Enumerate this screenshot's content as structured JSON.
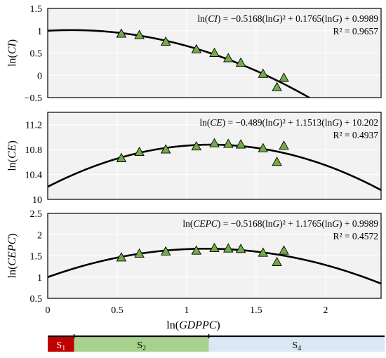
{
  "chart_data": [
    {
      "type": "scatter",
      "equation": {
        "pre": "ln(",
        "var": "CI",
        "mid": ") = −0.5168(ln",
        "g": "G",
        "post": ")² + 0.1765(ln",
        "g2": "G",
        "end": ") + 0.9989"
      },
      "r2": "R² = 0.9657",
      "ylabel": {
        "pre": "ln(",
        "var": "CI",
        "post": ")"
      },
      "xlim": [
        0,
        2.4
      ],
      "ylim": [
        -0.5,
        1.5
      ],
      "yticks": [
        "1.5",
        "1",
        "0.5",
        "0",
        "−0.5"
      ],
      "ytick_values": [
        1.5,
        1,
        0.5,
        0,
        -0.5
      ],
      "fit": {
        "a": -0.5168,
        "b": 0.1765,
        "c": 0.9989
      },
      "series": [
        {
          "x": [
            0.53,
            0.66,
            0.85,
            1.07,
            1.2,
            1.3,
            1.39,
            1.55,
            1.65,
            1.7
          ],
          "y": [
            0.93,
            0.9,
            0.75,
            0.58,
            0.5,
            0.38,
            0.28,
            0.03,
            -0.27,
            -0.06
          ]
        }
      ]
    },
    {
      "type": "scatter",
      "equation": {
        "pre": "ln(",
        "var": "CE",
        "mid": ") = −0.489(ln",
        "g": "G",
        "post": ")² + 1.1513(ln",
        "g2": "G",
        "end": ") + 10.202"
      },
      "r2": "R² = 0.4937",
      "ylabel": {
        "pre": "ln(",
        "var": "CE",
        "post": ")"
      },
      "xlim": [
        0,
        2.4
      ],
      "ylim": [
        10,
        11.4
      ],
      "yticks": [
        "11.2",
        "10.8",
        "10.4",
        "10"
      ],
      "ytick_values": [
        11.2,
        10.8,
        10.4,
        10
      ],
      "fit": {
        "a": -0.489,
        "b": 1.1513,
        "c": 10.202
      },
      "series": [
        {
          "x": [
            0.53,
            0.66,
            0.85,
            1.07,
            1.2,
            1.3,
            1.39,
            1.55,
            1.65,
            1.7
          ],
          "y": [
            10.66,
            10.76,
            10.8,
            10.85,
            10.9,
            10.89,
            10.88,
            10.82,
            10.6,
            10.86
          ]
        }
      ]
    },
    {
      "type": "scatter",
      "equation": {
        "pre": "ln(",
        "var": "CEPC",
        "mid": ") = −0.5168(ln",
        "g": "G",
        "post": ")² + 1.1765(ln",
        "g2": "G",
        "end": ") + 0.9989"
      },
      "r2": "R² = 0.4572",
      "ylabel": {
        "pre": "ln(",
        "var": "CEPC",
        "post": ")"
      },
      "xlim": [
        0,
        2.4
      ],
      "ylim": [
        0.5,
        2.5
      ],
      "yticks": [
        "2.5",
        "2",
        "1.5",
        "1",
        "0.5"
      ],
      "ytick_values": [
        2.5,
        2,
        1.5,
        1,
        0.5
      ],
      "fit": {
        "a": -0.5168,
        "b": 1.1765,
        "c": 0.9989
      },
      "series": [
        {
          "x": [
            0.53,
            0.66,
            0.85,
            1.07,
            1.2,
            1.3,
            1.39,
            1.55,
            1.65,
            1.7
          ],
          "y": [
            1.46,
            1.55,
            1.6,
            1.62,
            1.68,
            1.67,
            1.66,
            1.57,
            1.35,
            1.62
          ]
        }
      ]
    }
  ],
  "x_axis": {
    "ticks": [
      "0",
      "0.5",
      "1",
      "1.5",
      "2"
    ],
    "tick_values": [
      0,
      0.5,
      1,
      1.5,
      2
    ],
    "label": {
      "pre": "ln(",
      "var": "GDPPC",
      "post": ")"
    }
  },
  "stages": [
    {
      "name": "S",
      "sub": "1",
      "from": -0.03,
      "to": 0.19,
      "color": "#c00000",
      "text_color": "#ffffff"
    },
    {
      "name": "S",
      "sub": "2",
      "from": 0.19,
      "to": 1.16,
      "color": "#a9d18e",
      "text_color": "#000000"
    },
    {
      "name": "S",
      "sub": "4",
      "from": 1.16,
      "to": 2.44,
      "color": "#dae8f5",
      "text_color": "#000000"
    }
  ],
  "colors": {
    "panel_bg": "#f2f2f2",
    "grid": "#ffffff",
    "marker_fill": "#70ad47",
    "marker_stroke": "#000000",
    "curve": "#000000"
  }
}
